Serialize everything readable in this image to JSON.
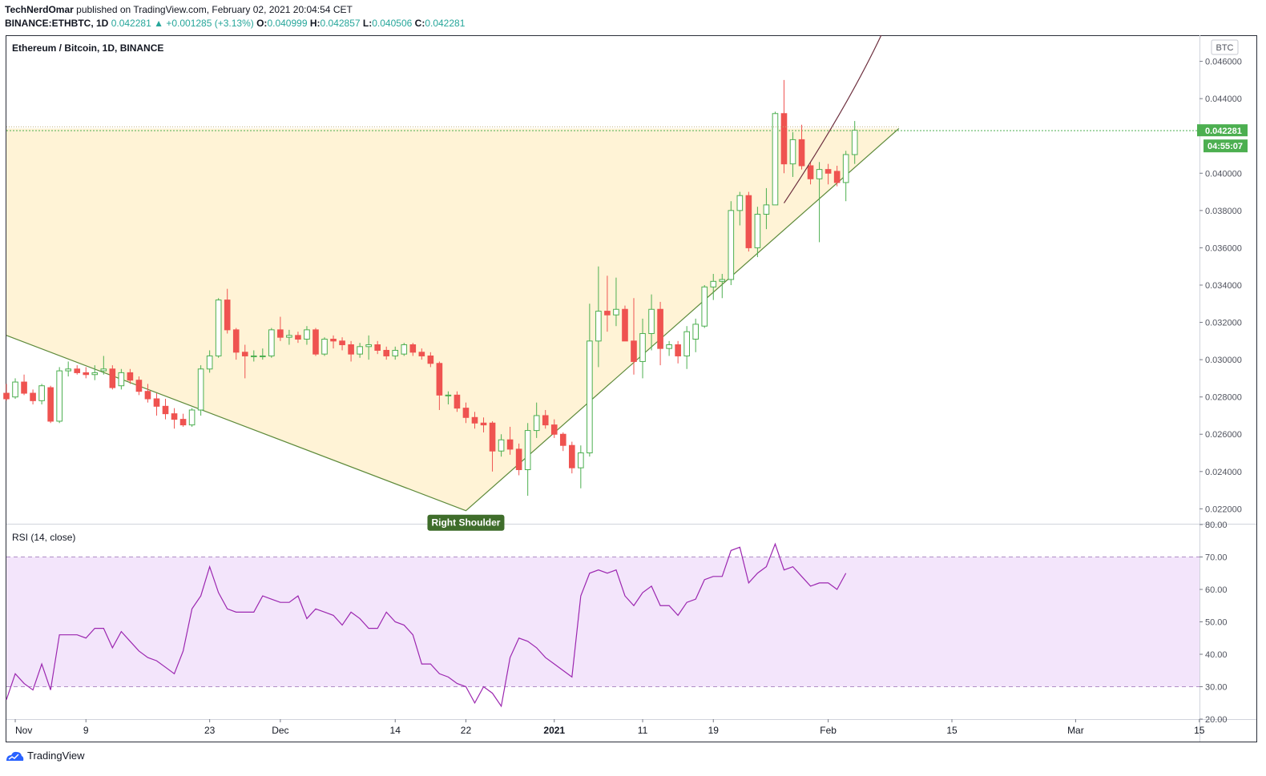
{
  "header": {
    "author": "TechNerdOmar",
    "published_text": "published on TradingView.com, February 02, 2021 20:04:54 CET",
    "symbol": "BINANCE:ETHBTC, 1D",
    "last": "0.042281",
    "change": "+0.001285 (+3.13%)",
    "open_label": "O:",
    "open": "0.040999",
    "high_label": "H:",
    "high": "0.042857",
    "low_label": "L:",
    "low": "0.040506",
    "close_label": "C:",
    "close": "0.042281"
  },
  "footer": {
    "brand": "TradingView"
  },
  "colors": {
    "up": "#4caf50",
    "down": "#ef5350",
    "triangle_fill": "#fff3d6",
    "trendline": "#5d8a3a",
    "rsi_line": "#9c27b0",
    "rsi_band": "#f3e5fb",
    "price_tag": "#4caf50",
    "arc": "#6d2f3e"
  },
  "chart_data": {
    "type": "candlestick",
    "title": "Ethereum / Bitcoin, 1D, BINANCE",
    "currency_label": "BTC",
    "price_axis": {
      "ylim": [
        0.0212,
        0.0474
      ],
      "ticks": [
        0.022,
        0.024,
        0.026,
        0.028,
        0.03,
        0.032,
        0.034,
        0.036,
        0.038,
        0.04,
        0.044,
        0.046
      ],
      "tick_labels": [
        "0.022000",
        "0.024000",
        "0.026000",
        "0.028000",
        "0.030000",
        "0.032000",
        "0.034000",
        "0.036000",
        "0.038000",
        "0.040000",
        "0.044000",
        "0.046000"
      ]
    },
    "last_price_label": "0.042281",
    "countdown_label": "04:55:07",
    "last_price": 0.042281,
    "x_axis": {
      "start": "2020-10-31",
      "end": "2021-03-22",
      "ticks": [
        {
          "date": "2020-11-01",
          "label": "Nov"
        },
        {
          "date": "2020-11-09",
          "label": "9"
        },
        {
          "date": "2020-11-23",
          "label": "23"
        },
        {
          "date": "2020-12-01",
          "label": "Dec"
        },
        {
          "date": "2020-12-14",
          "label": "14"
        },
        {
          "date": "2020-12-22",
          "label": "22"
        },
        {
          "date": "2021-01-01",
          "label": "2021"
        },
        {
          "date": "2021-01-11",
          "label": "11"
        },
        {
          "date": "2021-01-19",
          "label": "19"
        },
        {
          "date": "2021-02-01",
          "label": "Feb"
        },
        {
          "date": "2021-02-15",
          "label": "15"
        },
        {
          "date": "2021-03-01",
          "label": "Mar"
        },
        {
          "date": "2021-03-15",
          "label": "15"
        }
      ]
    },
    "candles": [
      {
        "date": "2020-10-31",
        "o": 0.0282,
        "h": 0.0287,
        "l": 0.0278,
        "c": 0.0279
      },
      {
        "date": "2020-11-01",
        "o": 0.028,
        "h": 0.029,
        "l": 0.0279,
        "c": 0.0288
      },
      {
        "date": "2020-11-02",
        "o": 0.0288,
        "h": 0.0292,
        "l": 0.0281,
        "c": 0.0282
      },
      {
        "date": "2020-11-03",
        "o": 0.0282,
        "h": 0.0284,
        "l": 0.0276,
        "c": 0.0278
      },
      {
        "date": "2020-11-04",
        "o": 0.0278,
        "h": 0.0287,
        "l": 0.0276,
        "c": 0.0286
      },
      {
        "date": "2020-11-05",
        "o": 0.0285,
        "h": 0.0286,
        "l": 0.0266,
        "c": 0.0267
      },
      {
        "date": "2020-11-06",
        "o": 0.0267,
        "h": 0.0296,
        "l": 0.0266,
        "c": 0.0294
      },
      {
        "date": "2020-11-07",
        "o": 0.0294,
        "h": 0.0299,
        "l": 0.0291,
        "c": 0.0295
      },
      {
        "date": "2020-11-08",
        "o": 0.0295,
        "h": 0.0297,
        "l": 0.0292,
        "c": 0.0293
      },
      {
        "date": "2020-11-09",
        "o": 0.0293,
        "h": 0.0296,
        "l": 0.029,
        "c": 0.0292
      },
      {
        "date": "2020-11-10",
        "o": 0.0292,
        "h": 0.0297,
        "l": 0.0289,
        "c": 0.0293
      },
      {
        "date": "2020-11-11",
        "o": 0.0294,
        "h": 0.0302,
        "l": 0.0292,
        "c": 0.0295
      },
      {
        "date": "2020-11-12",
        "o": 0.0295,
        "h": 0.0297,
        "l": 0.0284,
        "c": 0.0285
      },
      {
        "date": "2020-11-13",
        "o": 0.0286,
        "h": 0.0295,
        "l": 0.0284,
        "c": 0.0293
      },
      {
        "date": "2020-11-14",
        "o": 0.0293,
        "h": 0.0295,
        "l": 0.0287,
        "c": 0.0289
      },
      {
        "date": "2020-11-15",
        "o": 0.0289,
        "h": 0.0291,
        "l": 0.0281,
        "c": 0.0283
      },
      {
        "date": "2020-11-16",
        "o": 0.0283,
        "h": 0.0287,
        "l": 0.0277,
        "c": 0.0279
      },
      {
        "date": "2020-11-17",
        "o": 0.0279,
        "h": 0.0282,
        "l": 0.027,
        "c": 0.0275
      },
      {
        "date": "2020-11-18",
        "o": 0.0275,
        "h": 0.0279,
        "l": 0.0268,
        "c": 0.0271
      },
      {
        "date": "2020-11-19",
        "o": 0.0271,
        "h": 0.0274,
        "l": 0.0263,
        "c": 0.0268
      },
      {
        "date": "2020-11-20",
        "o": 0.0268,
        "h": 0.0271,
        "l": 0.0264,
        "c": 0.0265
      },
      {
        "date": "2020-11-21",
        "o": 0.0265,
        "h": 0.0274,
        "l": 0.0264,
        "c": 0.0273
      },
      {
        "date": "2020-11-22",
        "o": 0.0273,
        "h": 0.0297,
        "l": 0.027,
        "c": 0.0295
      },
      {
        "date": "2020-11-23",
        "o": 0.0295,
        "h": 0.0305,
        "l": 0.0293,
        "c": 0.0302
      },
      {
        "date": "2020-11-24",
        "o": 0.0302,
        "h": 0.0333,
        "l": 0.0301,
        "c": 0.0332
      },
      {
        "date": "2020-11-25",
        "o": 0.0332,
        "h": 0.0338,
        "l": 0.0314,
        "c": 0.0316
      },
      {
        "date": "2020-11-26",
        "o": 0.0316,
        "h": 0.0317,
        "l": 0.03,
        "c": 0.0304
      },
      {
        "date": "2020-11-27",
        "o": 0.0304,
        "h": 0.0308,
        "l": 0.029,
        "c": 0.0302
      },
      {
        "date": "2020-11-28",
        "o": 0.0302,
        "h": 0.0305,
        "l": 0.0299,
        "c": 0.0302
      },
      {
        "date": "2020-11-29",
        "o": 0.0302,
        "h": 0.0306,
        "l": 0.03,
        "c": 0.0302
      },
      {
        "date": "2020-11-30",
        "o": 0.0302,
        "h": 0.0317,
        "l": 0.0301,
        "c": 0.0316
      },
      {
        "date": "2020-12-01",
        "o": 0.0316,
        "h": 0.0323,
        "l": 0.031,
        "c": 0.0312
      },
      {
        "date": "2020-12-02",
        "o": 0.0312,
        "h": 0.0316,
        "l": 0.0308,
        "c": 0.0313
      },
      {
        "date": "2020-12-03",
        "o": 0.0313,
        "h": 0.0315,
        "l": 0.0309,
        "c": 0.0311
      },
      {
        "date": "2020-12-04",
        "o": 0.0311,
        "h": 0.0318,
        "l": 0.0308,
        "c": 0.0316
      },
      {
        "date": "2020-12-05",
        "o": 0.0316,
        "h": 0.0317,
        "l": 0.0302,
        "c": 0.0303
      },
      {
        "date": "2020-12-06",
        "o": 0.0303,
        "h": 0.0312,
        "l": 0.0302,
        "c": 0.0311
      },
      {
        "date": "2020-12-07",
        "o": 0.0311,
        "h": 0.0313,
        "l": 0.0306,
        "c": 0.031
      },
      {
        "date": "2020-12-08",
        "o": 0.031,
        "h": 0.0312,
        "l": 0.0305,
        "c": 0.0308
      },
      {
        "date": "2020-12-09",
        "o": 0.0308,
        "h": 0.031,
        "l": 0.0299,
        "c": 0.0303
      },
      {
        "date": "2020-12-10",
        "o": 0.0303,
        "h": 0.0309,
        "l": 0.0301,
        "c": 0.0307
      },
      {
        "date": "2020-12-11",
        "o": 0.0307,
        "h": 0.0313,
        "l": 0.03,
        "c": 0.0308
      },
      {
        "date": "2020-12-12",
        "o": 0.0308,
        "h": 0.031,
        "l": 0.0303,
        "c": 0.0305
      },
      {
        "date": "2020-12-13",
        "o": 0.0305,
        "h": 0.0307,
        "l": 0.03,
        "c": 0.0302
      },
      {
        "date": "2020-12-14",
        "o": 0.0302,
        "h": 0.0307,
        "l": 0.03,
        "c": 0.0305
      },
      {
        "date": "2020-12-15",
        "o": 0.0303,
        "h": 0.0309,
        "l": 0.0302,
        "c": 0.0308
      },
      {
        "date": "2020-12-16",
        "o": 0.0308,
        "h": 0.0309,
        "l": 0.0302,
        "c": 0.0304
      },
      {
        "date": "2020-12-17",
        "o": 0.0304,
        "h": 0.0306,
        "l": 0.03,
        "c": 0.0302
      },
      {
        "date": "2020-12-18",
        "o": 0.0302,
        "h": 0.0304,
        "l": 0.0296,
        "c": 0.0298
      },
      {
        "date": "2020-12-19",
        "o": 0.0298,
        "h": 0.0299,
        "l": 0.0273,
        "c": 0.0281
      },
      {
        "date": "2020-12-20",
        "o": 0.0281,
        "h": 0.0283,
        "l": 0.0276,
        "c": 0.0281
      },
      {
        "date": "2020-12-21",
        "o": 0.0281,
        "h": 0.0283,
        "l": 0.0272,
        "c": 0.0274
      },
      {
        "date": "2020-12-22",
        "o": 0.0274,
        "h": 0.0277,
        "l": 0.0266,
        "c": 0.0269
      },
      {
        "date": "2020-12-23",
        "o": 0.0269,
        "h": 0.0272,
        "l": 0.0263,
        "c": 0.0266
      },
      {
        "date": "2020-12-24",
        "o": 0.0266,
        "h": 0.0269,
        "l": 0.0261,
        "c": 0.0265
      },
      {
        "date": "2020-12-25",
        "o": 0.0266,
        "h": 0.0267,
        "l": 0.024,
        "c": 0.0251
      },
      {
        "date": "2020-12-26",
        "o": 0.0251,
        "h": 0.026,
        "l": 0.0248,
        "c": 0.0257
      },
      {
        "date": "2020-12-27",
        "o": 0.0257,
        "h": 0.0264,
        "l": 0.0249,
        "c": 0.0252
      },
      {
        "date": "2020-12-28",
        "o": 0.0252,
        "h": 0.0255,
        "l": 0.0238,
        "c": 0.0241
      },
      {
        "date": "2020-12-29",
        "o": 0.0241,
        "h": 0.0266,
        "l": 0.0227,
        "c": 0.0262
      },
      {
        "date": "2020-12-30",
        "o": 0.0262,
        "h": 0.0277,
        "l": 0.0258,
        "c": 0.027
      },
      {
        "date": "2020-12-31",
        "o": 0.027,
        "h": 0.0273,
        "l": 0.0263,
        "c": 0.0265
      },
      {
        "date": "2021-01-01",
        "o": 0.0265,
        "h": 0.0268,
        "l": 0.0258,
        "c": 0.026
      },
      {
        "date": "2021-01-02",
        "o": 0.026,
        "h": 0.0261,
        "l": 0.0251,
        "c": 0.0254
      },
      {
        "date": "2021-01-03",
        "o": 0.0254,
        "h": 0.0256,
        "l": 0.0239,
        "c": 0.0242
      },
      {
        "date": "2021-01-04",
        "o": 0.0242,
        "h": 0.0254,
        "l": 0.0231,
        "c": 0.025
      },
      {
        "date": "2021-01-05",
        "o": 0.025,
        "h": 0.033,
        "l": 0.0248,
        "c": 0.031
      },
      {
        "date": "2021-01-06",
        "o": 0.031,
        "h": 0.035,
        "l": 0.0296,
        "c": 0.0326
      },
      {
        "date": "2021-01-07",
        "o": 0.0326,
        "h": 0.0345,
        "l": 0.0315,
        "c": 0.0324
      },
      {
        "date": "2021-01-08",
        "o": 0.0324,
        "h": 0.0344,
        "l": 0.0318,
        "c": 0.0327
      },
      {
        "date": "2021-01-09",
        "o": 0.0327,
        "h": 0.0329,
        "l": 0.0312,
        "c": 0.031
      },
      {
        "date": "2021-01-10",
        "o": 0.031,
        "h": 0.0333,
        "l": 0.0292,
        "c": 0.0299
      },
      {
        "date": "2021-01-11",
        "o": 0.0299,
        "h": 0.0322,
        "l": 0.029,
        "c": 0.0314
      },
      {
        "date": "2021-01-12",
        "o": 0.0314,
        "h": 0.0335,
        "l": 0.0305,
        "c": 0.0327
      },
      {
        "date": "2021-01-13",
        "o": 0.0327,
        "h": 0.0331,
        "l": 0.0297,
        "c": 0.0306
      },
      {
        "date": "2021-01-14",
        "o": 0.0306,
        "h": 0.031,
        "l": 0.0302,
        "c": 0.0308
      },
      {
        "date": "2021-01-15",
        "o": 0.0308,
        "h": 0.031,
        "l": 0.0298,
        "c": 0.0302
      },
      {
        "date": "2021-01-16",
        "o": 0.0302,
        "h": 0.0318,
        "l": 0.0295,
        "c": 0.0315
      },
      {
        "date": "2021-01-17",
        "o": 0.0311,
        "h": 0.0322,
        "l": 0.0304,
        "c": 0.0319
      },
      {
        "date": "2021-01-18",
        "o": 0.0318,
        "h": 0.034,
        "l": 0.0317,
        "c": 0.0339
      },
      {
        "date": "2021-01-19",
        "o": 0.0339,
        "h": 0.0346,
        "l": 0.0332,
        "c": 0.0342
      },
      {
        "date": "2021-01-20",
        "o": 0.0342,
        "h": 0.0346,
        "l": 0.0333,
        "c": 0.0343
      },
      {
        "date": "2021-01-21",
        "o": 0.0343,
        "h": 0.0385,
        "l": 0.034,
        "c": 0.038
      },
      {
        "date": "2021-01-22",
        "o": 0.038,
        "h": 0.039,
        "l": 0.0372,
        "c": 0.0388
      },
      {
        "date": "2021-01-23",
        "o": 0.0388,
        "h": 0.039,
        "l": 0.0358,
        "c": 0.036
      },
      {
        "date": "2021-01-24",
        "o": 0.036,
        "h": 0.0382,
        "l": 0.0355,
        "c": 0.0378
      },
      {
        "date": "2021-01-25",
        "o": 0.0378,
        "h": 0.0392,
        "l": 0.037,
        "c": 0.0383
      },
      {
        "date": "2021-01-26",
        "o": 0.0383,
        "h": 0.0433,
        "l": 0.0383,
        "c": 0.0432
      },
      {
        "date": "2021-01-27",
        "o": 0.0432,
        "h": 0.045,
        "l": 0.04,
        "c": 0.0405
      },
      {
        "date": "2021-01-28",
        "o": 0.0405,
        "h": 0.0422,
        "l": 0.0398,
        "c": 0.0418
      },
      {
        "date": "2021-01-29",
        "o": 0.0418,
        "h": 0.0426,
        "l": 0.0402,
        "c": 0.0404
      },
      {
        "date": "2021-01-30",
        "o": 0.0404,
        "h": 0.0406,
        "l": 0.0394,
        "c": 0.0397
      },
      {
        "date": "2021-01-31",
        "o": 0.0397,
        "h": 0.0406,
        "l": 0.0363,
        "c": 0.0402
      },
      {
        "date": "2021-02-01",
        "o": 0.0402,
        "h": 0.0405,
        "l": 0.0394,
        "c": 0.04
      },
      {
        "date": "2021-02-02",
        "o": 0.0401,
        "h": 0.0404,
        "l": 0.0393,
        "c": 0.0395
      },
      {
        "date": "2021-02-03",
        "o": 0.0395,
        "h": 0.0412,
        "l": 0.0385,
        "c": 0.041
      },
      {
        "date": "2021-02-04",
        "o": 0.041,
        "h": 0.0428,
        "l": 0.0405,
        "c": 0.0423
      }
    ],
    "annotations": {
      "right_shoulder_label": "Right Shoulder",
      "pattern_points": [
        {
          "date": "2020-10-31",
          "price": 0.0313
        },
        {
          "date": "2020-12-22",
          "price": 0.0219
        },
        {
          "date": "2021-02-09",
          "price": 0.0424
        },
        {
          "date": "2020-10-31",
          "price": 0.0424
        }
      ],
      "arc": [
        {
          "date": "2021-01-27",
          "price": 0.0384
        },
        {
          "date": "2021-02-03",
          "price": 0.0434
        },
        {
          "date": "2021-02-07",
          "price": 0.0474
        }
      ]
    },
    "rsi": {
      "label": "RSI (14, close)",
      "ylim": [
        20,
        80
      ],
      "ticks": [
        20,
        30,
        40,
        50,
        60,
        70,
        80
      ],
      "tick_labels": [
        "20.00",
        "30.00",
        "40.00",
        "50.00",
        "60.00",
        "70.00",
        "80.00"
      ],
      "upper_band": 70,
      "lower_band": 30,
      "values": [
        26,
        34,
        31,
        29,
        37,
        29,
        46,
        46,
        46,
        45,
        48,
        48,
        42,
        47,
        44,
        41,
        39,
        38,
        36,
        34,
        41,
        54,
        58,
        67,
        59,
        54,
        53,
        53,
        53,
        58,
        57,
        56,
        56,
        58,
        51,
        54,
        53,
        52,
        49,
        53,
        51,
        48,
        48,
        53,
        50,
        49,
        46,
        37,
        37,
        34,
        33,
        31,
        30,
        25,
        30,
        28,
        24,
        39,
        45,
        44,
        42,
        39,
        37,
        35,
        33,
        58,
        65,
        66,
        65,
        66,
        58,
        55,
        59,
        61,
        55,
        55,
        52,
        56,
        57,
        63,
        64,
        64,
        72,
        73,
        62,
        65,
        67,
        74,
        66,
        67,
        64,
        61,
        62,
        62,
        60,
        65
      ]
    }
  }
}
